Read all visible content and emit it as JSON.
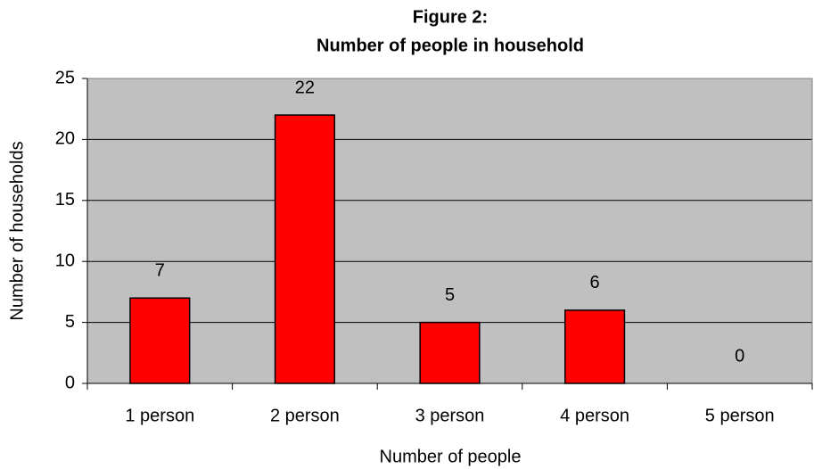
{
  "chart_data": {
    "type": "bar",
    "title": "Figure 2:",
    "subtitle": "Number of people in household",
    "x_label": "Number of people",
    "y_label": "Number of households",
    "categories": [
      "1 person",
      "2 person",
      "3 person",
      "4 person",
      "5 person"
    ],
    "values": [
      7,
      22,
      5,
      6,
      0
    ],
    "color": "#ff0000",
    "ylim": [
      0,
      25
    ],
    "yticks": [
      0,
      5,
      10,
      15,
      20,
      25
    ],
    "grid": true
  }
}
